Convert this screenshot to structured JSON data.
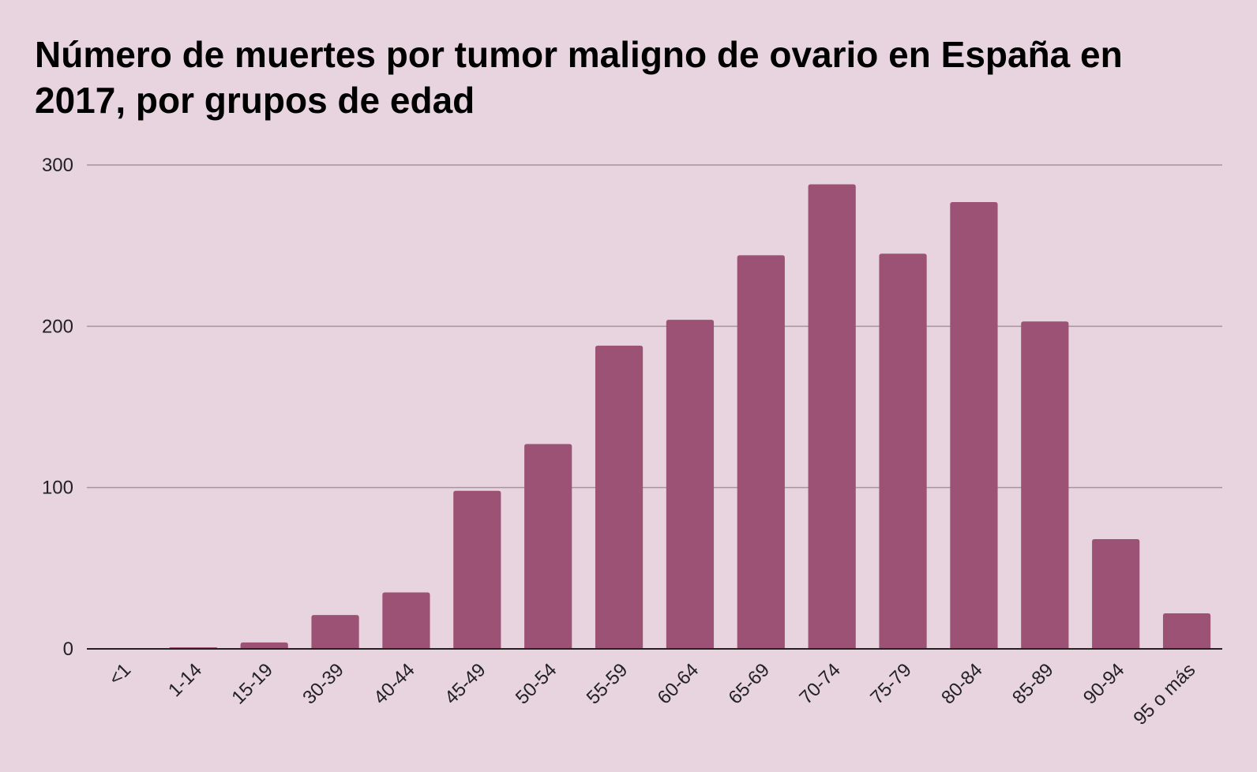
{
  "colors": {
    "background": "#e8d4df",
    "bar": "#9c5274",
    "grid": "#a8949f",
    "axis": "#222222"
  },
  "chart_data": {
    "type": "bar",
    "title": "Número de muertes por tumor maligno de ovario en España en 2017, por grupos de edad",
    "xlabel": "",
    "ylabel": "",
    "categories": [
      "<1",
      "1-14",
      "15-19",
      "30-39",
      "40-44",
      "45-49",
      "50-54",
      "55-59",
      "60-64",
      "65-69",
      "70-74",
      "75-79",
      "80-84",
      "85-89",
      "90-94",
      "95 o más"
    ],
    "values": [
      0,
      1,
      4,
      21,
      35,
      98,
      127,
      188,
      204,
      244,
      288,
      245,
      277,
      203,
      68,
      22
    ],
    "ylim": [
      0,
      300
    ],
    "yticks": [
      "0",
      "100",
      "200",
      "300"
    ],
    "grid": true,
    "legend": "none"
  }
}
